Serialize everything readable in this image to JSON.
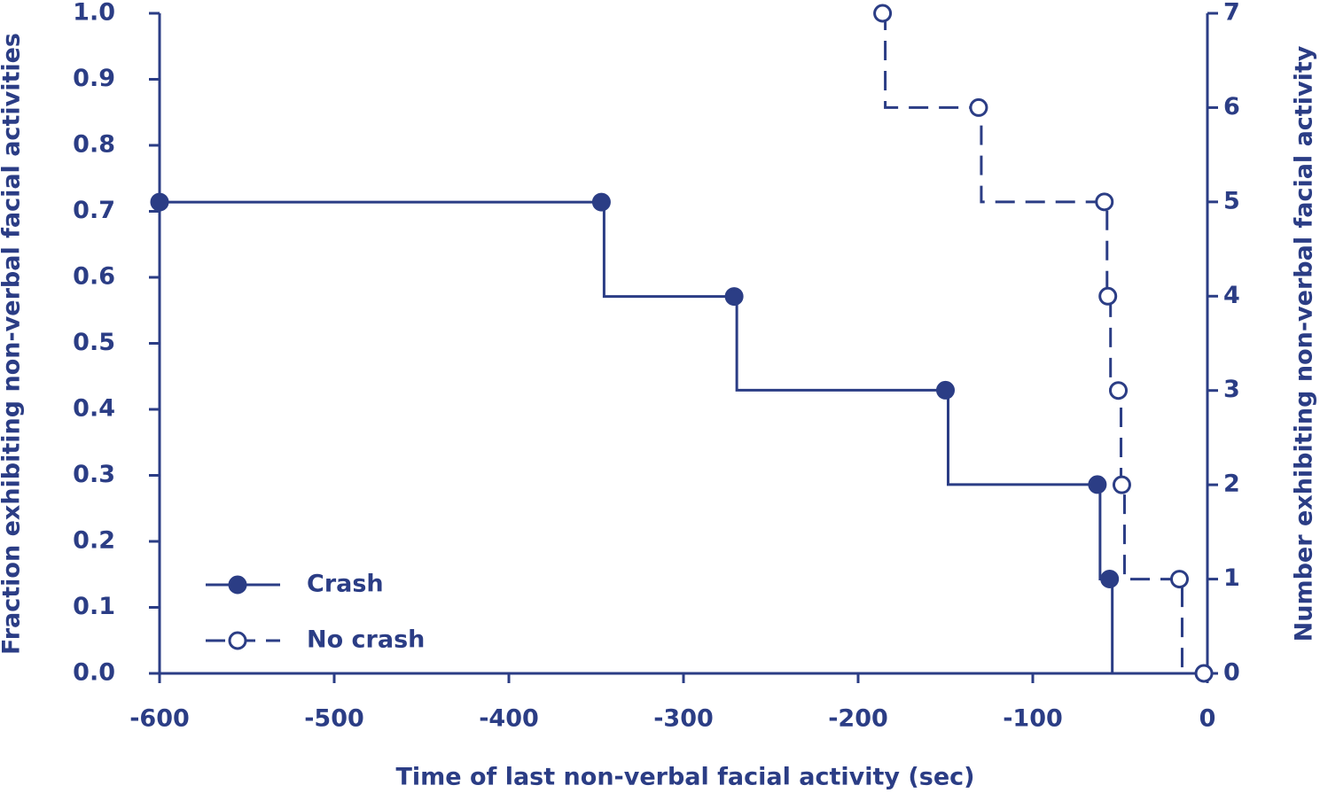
{
  "chart_data": {
    "type": "step",
    "xlabel": "Time of last non-verbal facial activity (sec)",
    "ylabel": "Fraction exhibiting non-verbal facial activities",
    "y2label": "Number exhibiting non-verbal facial activity",
    "xlim": [
      -600,
      0
    ],
    "xticks": [
      -600,
      -500,
      -400,
      -300,
      -200,
      -100,
      0
    ],
    "ylim": [
      0,
      1
    ],
    "yticks": [
      {
        "value": 0,
        "label": "0.0"
      },
      0.1,
      0.2,
      0.3,
      0.4,
      0.5,
      0.6,
      0.7,
      0.8,
      0.9,
      {
        "value": 1,
        "label": "1.0"
      }
    ],
    "y2lim": [
      0,
      7
    ],
    "y2ticks": [
      0,
      1,
      2,
      3,
      4,
      5,
      6,
      7
    ],
    "legend": "lower left",
    "series": [
      {
        "name": "Crash",
        "color": "#2b3d85",
        "marker": "filled",
        "linestyle": "solid",
        "x": [
          -600,
          -347,
          -271,
          -150,
          -63,
          -56
        ],
        "values": [
          0.714,
          0.714,
          0.571,
          0.429,
          0.286,
          0.143
        ]
      },
      {
        "name": "No crash",
        "color": "#2b3d85",
        "marker": "open",
        "linestyle": "dashed",
        "axis": "y2",
        "x": [
          -186,
          -131,
          -59,
          -57,
          -51,
          -49,
          -16,
          -2
        ],
        "values": [
          7,
          6,
          5,
          4,
          3,
          2,
          1,
          0
        ]
      }
    ]
  }
}
